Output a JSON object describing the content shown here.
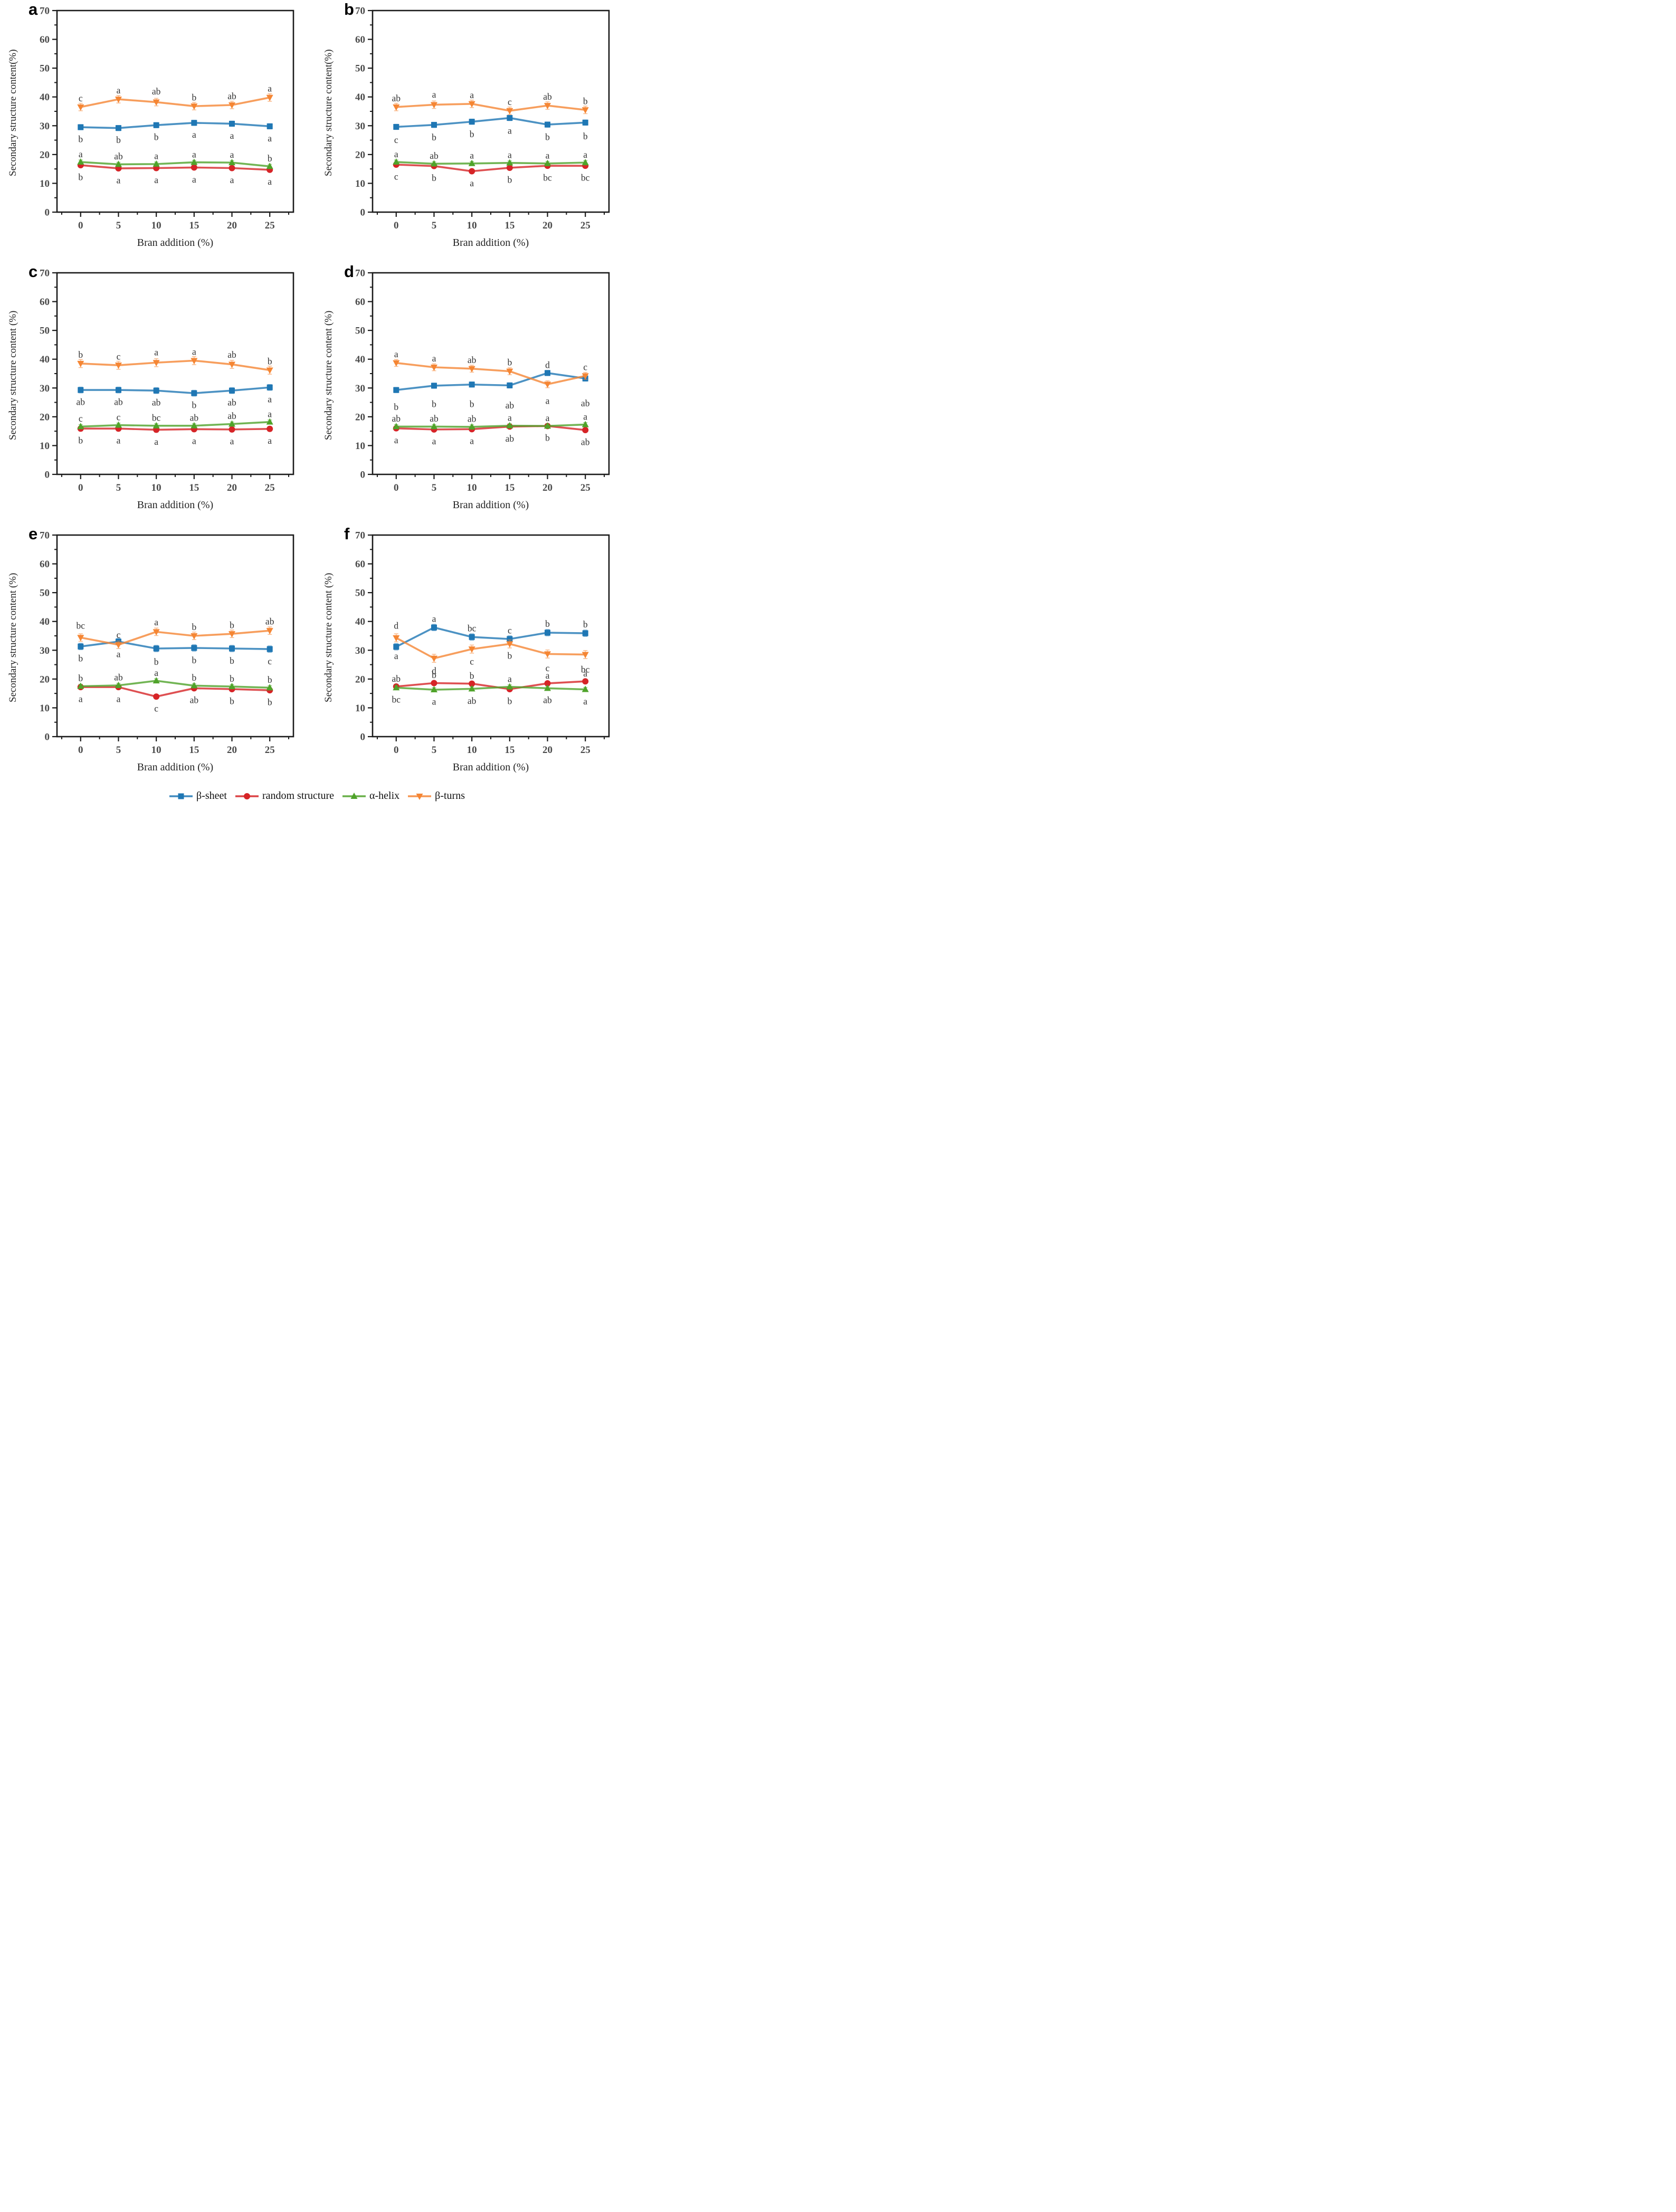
{
  "figure": {
    "colors": {
      "beta_sheet": "#1F77B4",
      "random": "#D62427",
      "alpha_helix": "#4FA32A",
      "beta_turns": "#F58634"
    },
    "markers": {
      "beta_sheet": "square",
      "random": "circle",
      "alpha_helix": "triangle-up",
      "beta_turns": "triangle-down"
    },
    "legend": [
      {
        "key": "beta_sheet",
        "label": "β-sheet"
      },
      {
        "key": "random",
        "label": "random structure"
      },
      {
        "key": "alpha_helix",
        "label": "α-helix"
      },
      {
        "key": "beta_turns",
        "label": "β-turns"
      }
    ]
  },
  "chart_data": [
    {
      "id": "a",
      "type": "line",
      "title": "a",
      "xlabel": "Bran addition (%)",
      "ylabel": "Secondary structure content(%)",
      "x": [
        0,
        5,
        10,
        15,
        20,
        25
      ],
      "ylim": [
        0,
        70
      ],
      "ytick_step": 10,
      "grid": false,
      "series": [
        {
          "key": "beta_sheet",
          "name": "β-sheet",
          "values": [
            29.5,
            29.2,
            30.2,
            31.0,
            30.7,
            29.8
          ],
          "err": 0.9,
          "letters": [
            "b",
            "b",
            "b",
            "a",
            "a",
            "a"
          ],
          "letters_y": [
            25.4,
            25.1,
            26.1,
            26.9,
            26.6,
            25.7
          ]
        },
        {
          "key": "random",
          "name": "random structure",
          "values": [
            16.3,
            15.2,
            15.3,
            15.5,
            15.3,
            14.7
          ],
          "err": 0.7,
          "letters": [
            "b",
            "a",
            "a",
            "a",
            "a",
            "a"
          ],
          "letters_y": [
            12.2,
            11.1,
            11.2,
            11.4,
            11.2,
            10.6
          ]
        },
        {
          "key": "alpha_helix",
          "name": "α-helix",
          "values": [
            17.4,
            16.6,
            16.7,
            17.3,
            17.2,
            15.9
          ],
          "err": 0.7,
          "letters": [
            "a",
            "ab",
            "a",
            "a",
            "a",
            "b"
          ],
          "letters_y": [
            20.2,
            19.4,
            19.5,
            20.1,
            20.0,
            18.7
          ]
        },
        {
          "key": "beta_turns",
          "name": "β-turns",
          "values": [
            36.5,
            39.2,
            38.2,
            36.8,
            37.2,
            39.8
          ],
          "err": 1.3,
          "letters": [
            "c",
            "a",
            "ab",
            "b",
            "ab",
            "a"
          ],
          "letters_y": [
            39.6,
            42.3,
            42.0,
            39.9,
            40.3,
            43.0
          ]
        }
      ]
    },
    {
      "id": "b",
      "type": "line",
      "title": "b",
      "xlabel": "Bran addition (%)",
      "ylabel": "Secondary structure content(%)",
      "x": [
        0,
        5,
        10,
        15,
        20,
        25
      ],
      "ylim": [
        0,
        70
      ],
      "ytick_step": 10,
      "grid": false,
      "series": [
        {
          "key": "beta_sheet",
          "name": "β-sheet",
          "values": [
            29.6,
            30.3,
            31.4,
            32.7,
            30.4,
            31.1
          ],
          "err": 0.9,
          "letters": [
            "c",
            "b",
            "b",
            "a",
            "b",
            "b"
          ],
          "letters_y": [
            25.1,
            26.0,
            27.1,
            28.3,
            26.1,
            26.4
          ]
        },
        {
          "key": "random",
          "name": "random structure",
          "values": [
            16.5,
            16.0,
            14.2,
            15.4,
            16.1,
            16.1
          ],
          "err": 0.7,
          "letters": [
            "c",
            "b",
            "a",
            "b",
            "bc",
            "bc"
          ],
          "letters_y": [
            12.4,
            11.9,
            10.1,
            11.3,
            12.0,
            12.0
          ]
        },
        {
          "key": "alpha_helix",
          "name": "α-helix",
          "values": [
            17.4,
            16.8,
            16.9,
            17.1,
            16.9,
            17.2
          ],
          "err": 0.7,
          "letters": [
            "a",
            "ab",
            "a",
            "a",
            "a",
            "a"
          ],
          "letters_y": [
            20.2,
            19.6,
            19.7,
            19.9,
            19.7,
            20.0
          ]
        },
        {
          "key": "beta_turns",
          "name": "β-turns",
          "values": [
            36.5,
            37.3,
            37.6,
            35.2,
            37.0,
            35.5
          ],
          "err": 1.3,
          "letters": [
            "ab",
            "a",
            "a",
            "c",
            "ab",
            "b"
          ],
          "letters_y": [
            39.6,
            40.9,
            40.7,
            38.3,
            40.1,
            38.6
          ]
        }
      ]
    },
    {
      "id": "c",
      "type": "line",
      "title": "c",
      "xlabel": "Bran addition (%)",
      "ylabel": "Secondary structure content (%)",
      "x": [
        0,
        5,
        10,
        15,
        20,
        25
      ],
      "ylim": [
        0,
        70
      ],
      "ytick_step": 10,
      "grid": false,
      "series": [
        {
          "key": "beta_sheet",
          "name": "β-sheet",
          "values": [
            29.3,
            29.3,
            29.1,
            28.2,
            29.1,
            30.2
          ],
          "err": 1.0,
          "letters": [
            "ab",
            "ab",
            "ab",
            "b",
            "ab",
            "a"
          ],
          "letters_y": [
            25.2,
            25.2,
            25.0,
            24.1,
            25.0,
            26.1
          ]
        },
        {
          "key": "random",
          "name": "random structure",
          "values": [
            15.9,
            15.9,
            15.5,
            15.7,
            15.6,
            15.8
          ],
          "err": 0.8,
          "letters": [
            "b",
            "a",
            "a",
            "a",
            "a",
            "a"
          ],
          "letters_y": [
            11.8,
            11.8,
            11.4,
            11.6,
            11.5,
            11.7
          ]
        },
        {
          "key": "alpha_helix",
          "name": "α-helix",
          "values": [
            16.6,
            17.1,
            16.9,
            16.9,
            17.5,
            18.2
          ],
          "err": 0.7,
          "letters": [
            "c",
            "c",
            "bc",
            "ab",
            "ab",
            "a"
          ],
          "letters_y": [
            19.4,
            19.9,
            19.7,
            19.7,
            20.3,
            21.0
          ]
        },
        {
          "key": "beta_turns",
          "name": "β-turns",
          "values": [
            38.5,
            37.9,
            38.8,
            39.5,
            38.2,
            36.2
          ],
          "err": 1.4,
          "letters": [
            "b",
            "c",
            "a",
            "a",
            "ab",
            "b"
          ],
          "letters_y": [
            41.6,
            41.0,
            42.4,
            42.6,
            41.6,
            39.3
          ]
        }
      ]
    },
    {
      "id": "d",
      "type": "line",
      "title": "d",
      "xlabel": "Bran addition (%)",
      "ylabel": "Secondary structure content (%)",
      "x": [
        0,
        5,
        10,
        15,
        20,
        25
      ],
      "ylim": [
        0,
        70
      ],
      "ytick_step": 10,
      "grid": false,
      "series": [
        {
          "key": "beta_sheet",
          "name": "β-sheet",
          "values": [
            29.3,
            30.8,
            31.2,
            30.9,
            35.2,
            33.3
          ],
          "err": 0.9,
          "letters": [
            "b",
            "b",
            "b",
            "ab",
            "a",
            "ab"
          ],
          "letters_y": [
            23.5,
            24.5,
            24.5,
            24.0,
            25.6,
            24.7
          ]
        },
        {
          "key": "random",
          "name": "random structure",
          "values": [
            16.0,
            15.6,
            15.7,
            16.6,
            16.8,
            15.4
          ],
          "err": 0.7,
          "letters": [
            "a",
            "a",
            "a",
            "ab",
            "b",
            "ab"
          ],
          "letters_y": [
            11.9,
            11.5,
            11.6,
            12.5,
            12.7,
            11.3
          ]
        },
        {
          "key": "alpha_helix",
          "name": "α-helix",
          "values": [
            16.6,
            16.6,
            16.5,
            16.9,
            16.8,
            17.3
          ],
          "err": 0.7,
          "letters": [
            "ab",
            "ab",
            "ab",
            "a",
            "a",
            "a"
          ],
          "letters_y": [
            19.4,
            19.4,
            19.3,
            19.7,
            19.6,
            20.1
          ]
        },
        {
          "key": "beta_turns",
          "name": "β-turns",
          "values": [
            38.7,
            37.2,
            36.7,
            35.8,
            31.3,
            34.2
          ],
          "err": 1.2,
          "letters": [
            "a",
            "a",
            "ab",
            "b",
            "d",
            "c"
          ],
          "letters_y": [
            41.8,
            40.3,
            39.8,
            38.9,
            38.0,
            37.3
          ]
        }
      ]
    },
    {
      "id": "e",
      "type": "line",
      "title": "e",
      "xlabel": "Bran addition (%)",
      "ylabel": "Secondary structure content (%)",
      "x": [
        0,
        5,
        10,
        15,
        20,
        25
      ],
      "ylim": [
        0,
        70
      ],
      "ytick_step": 10,
      "grid": false,
      "series": [
        {
          "key": "beta_sheet",
          "name": "β-sheet",
          "values": [
            31.3,
            33.0,
            30.6,
            30.8,
            30.6,
            30.4
          ],
          "err": 1.1,
          "letters": [
            "b",
            "a",
            "b",
            "b",
            "b",
            "c"
          ],
          "letters_y": [
            27.2,
            28.7,
            26.0,
            26.6,
            26.4,
            26.2
          ]
        },
        {
          "key": "random",
          "name": "random structure",
          "values": [
            17.2,
            17.2,
            13.9,
            16.8,
            16.5,
            16.1
          ],
          "err": 0.7,
          "letters": [
            "a",
            "a",
            "c",
            "ab",
            "b",
            "b"
          ],
          "letters_y": [
            13.1,
            13.1,
            9.8,
            12.7,
            12.4,
            12.0
          ]
        },
        {
          "key": "alpha_helix",
          "name": "α-helix",
          "values": [
            17.5,
            17.8,
            19.4,
            17.7,
            17.4,
            17.0
          ],
          "err": 0.7,
          "letters": [
            "b",
            "ab",
            "a",
            "b",
            "b",
            "b"
          ],
          "letters_y": [
            20.3,
            20.6,
            22.2,
            20.5,
            20.2,
            19.8
          ]
        },
        {
          "key": "beta_turns",
          "name": "β-turns",
          "values": [
            34.4,
            31.9,
            36.4,
            35.0,
            35.7,
            36.8
          ],
          "err": 1.3,
          "letters": [
            "bc",
            "c",
            "a",
            "b",
            "b",
            "ab"
          ],
          "letters_y": [
            38.6,
            35.4,
            39.8,
            38.1,
            38.8,
            40.0
          ]
        }
      ]
    },
    {
      "id": "f",
      "type": "line",
      "title": "f",
      "xlabel": "Bran addition (%)",
      "ylabel": "Secondary structure content (%)",
      "x": [
        0,
        5,
        10,
        15,
        20,
        25
      ],
      "ylim": [
        0,
        70
      ],
      "ytick_step": 10,
      "grid": false,
      "series": [
        {
          "key": "beta_sheet",
          "name": "β-sheet",
          "values": [
            31.2,
            37.9,
            34.6,
            33.9,
            36.1,
            35.9
          ],
          "err": 1.1,
          "letters": [
            "d",
            "a",
            "bc",
            "c",
            "b",
            "b"
          ],
          "letters_y": [
            38.6,
            41.0,
            37.7,
            36.9,
            39.2,
            39.0
          ]
        },
        {
          "key": "random",
          "name": "random structure",
          "values": [
            17.4,
            18.6,
            18.4,
            16.5,
            18.5,
            19.2
          ],
          "err": 0.7,
          "letters": [
            "ab",
            "b",
            "b",
            "b",
            "a",
            "a"
          ],
          "letters_y": [
            20.2,
            21.4,
            21.2,
            12.4,
            21.3,
            22.0
          ]
        },
        {
          "key": "alpha_helix",
          "name": "α-helix",
          "values": [
            17.0,
            16.3,
            16.6,
            17.3,
            16.8,
            16.4
          ],
          "err": 0.7,
          "letters": [
            "bc",
            "a",
            "ab",
            "a",
            "ab",
            "a"
          ],
          "letters_y": [
            12.9,
            12.2,
            12.5,
            20.1,
            12.7,
            12.3
          ]
        },
        {
          "key": "beta_turns",
          "name": "β-turns",
          "values": [
            34.3,
            27.2,
            30.4,
            32.2,
            28.7,
            28.5
          ],
          "err": 1.4,
          "letters": [
            "a",
            "d",
            "c",
            "b",
            "c",
            "bc"
          ],
          "letters_y": [
            28.0,
            22.9,
            26.1,
            28.1,
            23.8,
            23.4
          ]
        }
      ]
    }
  ]
}
